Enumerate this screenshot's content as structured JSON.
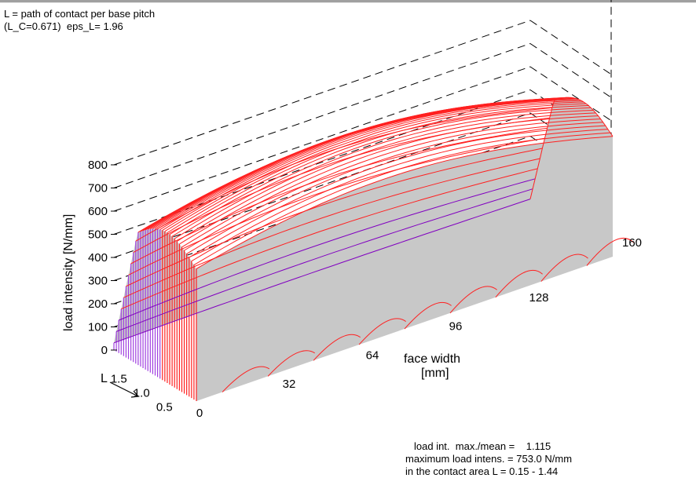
{
  "header": {
    "line1": "L = path of contact per base pitch",
    "line2": "(L_C=0.671)  eps_L= 1.96"
  },
  "footer": {
    "line1": "load int.  max./mean =    1.115",
    "line2": "maximum load intens. = 753.0 N/mm",
    "line3": "in the contact area L = 0.15 - 1.44"
  },
  "chart_data": {
    "type": "surface3d",
    "title": "",
    "zlabel": "load intensity  [N/mm]",
    "xlabel": "face width",
    "xunit": "[mm]",
    "ylabel": "L",
    "zticks": [
      "0",
      "100",
      "200",
      "300",
      "400",
      "500",
      "600",
      "700",
      "800"
    ],
    "xticks": [
      "0",
      "32",
      "64",
      "96",
      "128",
      "160"
    ],
    "yticks": [
      "0.5",
      "1.0",
      "1.5"
    ],
    "zlim": [
      0,
      800
    ],
    "xlim": [
      0,
      160
    ],
    "ylim": [
      0.15,
      1.96
    ],
    "max_load_intensity": 753.0,
    "max_to_mean_ratio": 1.115,
    "contact_L_range": [
      0.15,
      1.44
    ],
    "colors": {
      "surface": "#c8c8c8",
      "front_edge": "#ff2020",
      "side_face": "#a040e0",
      "back_edge": "#8000c0"
    }
  }
}
